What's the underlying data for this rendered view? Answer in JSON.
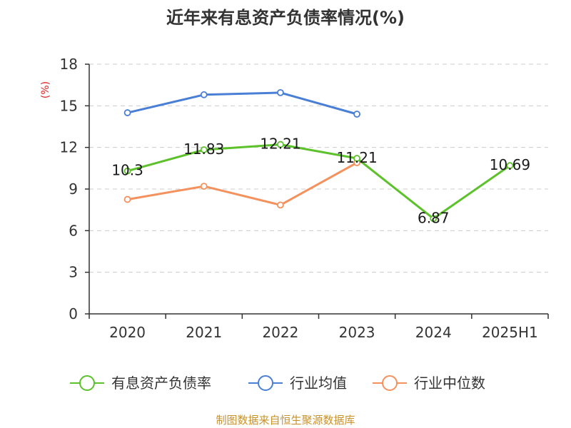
{
  "title": "近年来有息资产负债率情况(%)",
  "source": "制图数据来自恒生聚源数据库",
  "chart_data": {
    "type": "line",
    "title": "近年来有息资产负债率情况(%)",
    "ylabel": "(%)",
    "ylim": [
      0,
      18
    ],
    "yticks": [
      0,
      3,
      6,
      9,
      12,
      15,
      18
    ],
    "categories": [
      "2020",
      "2021",
      "2022",
      "2023",
      "2024",
      "2025H1"
    ],
    "grid": true,
    "legend_position": "bottom",
    "series": [
      {
        "name": "有息资产负债率",
        "color": "#5cc12a",
        "values": [
          10.3,
          11.83,
          12.21,
          11.21,
          6.87,
          10.69
        ],
        "data_labels": [
          "10.3",
          "11.83",
          "12.21",
          "11.21",
          "6.87",
          "10.69"
        ]
      },
      {
        "name": "行业均值",
        "color": "#4a7fd6",
        "values": [
          14.5,
          15.8,
          15.95,
          14.4,
          null,
          null
        ]
      },
      {
        "name": "行业中位数",
        "color": "#f4915c",
        "values": [
          8.25,
          9.2,
          7.85,
          10.9,
          null,
          null
        ]
      }
    ]
  }
}
